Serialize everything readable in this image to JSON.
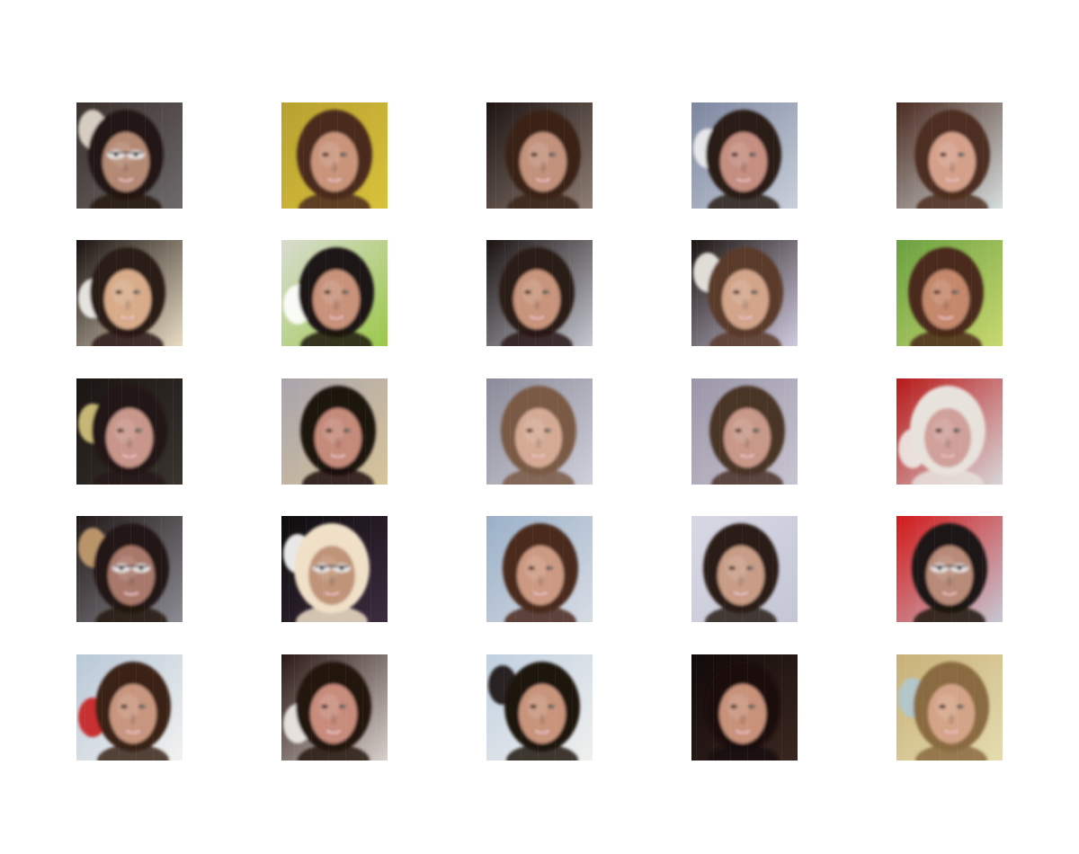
{
  "figure": {
    "background": "#ffffff",
    "rows": 5,
    "columns": 5,
    "tiles": [
      {
        "subject": "face-with-glasses",
        "bg": "#3a302c",
        "bg2": "#6e6a6c",
        "hair": "#241812",
        "skin": "#b58a74",
        "glasses": true,
        "blobs": [
          "#e7ddd0"
        ]
      },
      {
        "subject": "smiling-face",
        "bg": "#b8a030",
        "bg2": "#d8c23a",
        "hair": "#4a2a1c",
        "skin": "#c9947a",
        "glasses": false,
        "blobs": []
      },
      {
        "subject": "smiling-face",
        "bg": "#1d1412",
        "bg2": "#8e7e74",
        "hair": "#3b2318",
        "skin": "#c2927c",
        "glasses": false,
        "blobs": []
      },
      {
        "subject": "smiling-face",
        "bg": "#7c86a0",
        "bg2": "#c9d0da",
        "hair": "#2a1d18",
        "skin": "#c48e80",
        "glasses": false,
        "blobs": [
          "#f0f0ee"
        ]
      },
      {
        "subject": "smiling-face",
        "bg": "#4a2a20",
        "bg2": "#d6dede",
        "hair": "#4e2e20",
        "skin": "#d4a08a",
        "glasses": false,
        "blobs": []
      },
      {
        "subject": "smiling-face",
        "bg": "#1a1210",
        "bg2": "#e8dcc4",
        "hair": "#2b1a14",
        "skin": "#d8ac8a",
        "glasses": false,
        "blobs": [
          "#f4f2ee"
        ]
      },
      {
        "subject": "smiling-face",
        "bg": "#d8dcd0",
        "bg2": "#9cc84a",
        "hair": "#1c1412",
        "skin": "#c8927a",
        "glasses": false,
        "blobs": [
          "#ffffff"
        ]
      },
      {
        "subject": "smiling-face",
        "bg": "#1a1210",
        "bg2": "#c6c8d2",
        "hair": "#2a1a14",
        "skin": "#c8947c",
        "glasses": false,
        "blobs": []
      },
      {
        "subject": "smiling-face",
        "bg": "#1c1410",
        "bg2": "#cfcae0",
        "hair": "#5a3a2a",
        "skin": "#d2a48a",
        "glasses": false,
        "blobs": [
          "#f2eee8"
        ]
      },
      {
        "subject": "smiling-face",
        "bg": "#6aa040",
        "bg2": "#c8d870",
        "hair": "#4a2a1a",
        "skin": "#c4886c",
        "glasses": false,
        "blobs": []
      },
      {
        "subject": "smiling-face",
        "bg": "#1a1412",
        "bg2": "#3a3430",
        "hair": "#241814",
        "skin": "#c8968a",
        "glasses": false,
        "blobs": [
          "#d8c880"
        ]
      },
      {
        "subject": "smiling-face",
        "bg": "#a8a4ac",
        "bg2": "#d8c49a",
        "hair": "#1c1210",
        "skin": "#c48a7a",
        "glasses": false,
        "blobs": []
      },
      {
        "subject": "smiling-face",
        "bg": "#8a8a98",
        "bg2": "#d0d0dc",
        "hair": "#7a5a44",
        "skin": "#d4aa94",
        "glasses": false,
        "blobs": []
      },
      {
        "subject": "smiling-face",
        "bg": "#9a96a8",
        "bg2": "#c8c4d0",
        "hair": "#4a3428",
        "skin": "#c89888",
        "glasses": false,
        "blobs": []
      },
      {
        "subject": "smiling-face",
        "bg": "#b81818",
        "bg2": "#d8d6d8",
        "hair": "#e8e2dc",
        "skin": "#d0a09a",
        "glasses": false,
        "blobs": [
          "#f0ece8"
        ]
      },
      {
        "subject": "face-with-glasses",
        "bg": "#201816",
        "bg2": "#8c8c94",
        "hair": "#241812",
        "skin": "#a8786a",
        "glasses": true,
        "blobs": [
          "#c8a070"
        ]
      },
      {
        "subject": "face-with-glasses",
        "bg": "#0e0c0c",
        "bg2": "#3c2c40",
        "hair": "#f0e0c8",
        "skin": "#c09478",
        "glasses": true,
        "blobs": [
          "#ffffff"
        ]
      },
      {
        "subject": "smiling-face",
        "bg": "#9ab0c8",
        "bg2": "#d8dce4",
        "hair": "#4a2c1e",
        "skin": "#cc9a82",
        "glasses": false,
        "blobs": []
      },
      {
        "subject": "smiling-face",
        "bg": "#d8d8e4",
        "bg2": "#c4c6d6",
        "hair": "#2a1c16",
        "skin": "#c89c86",
        "glasses": false,
        "blobs": []
      },
      {
        "subject": "face-with-glasses",
        "bg": "#d21818",
        "bg2": "#c6c8d4",
        "hair": "#1c1412",
        "skin": "#b88a78",
        "glasses": true,
        "blobs": []
      },
      {
        "subject": "smiling-face",
        "bg": "#b8c8d8",
        "bg2": "#f2f2f0",
        "hair": "#3a2418",
        "skin": "#c8967e",
        "glasses": false,
        "blobs": [
          "#c82020"
        ]
      },
      {
        "subject": "smiling-face",
        "bg": "#2a1814",
        "bg2": "#d8d0cc",
        "hair": "#241410",
        "skin": "#c88c7c",
        "glasses": false,
        "blobs": [
          "#f2eeea"
        ]
      },
      {
        "subject": "smiling-face",
        "bg": "#c0d0e0",
        "bg2": "#f0f0ee",
        "hair": "#1e1410",
        "skin": "#c8947c",
        "glasses": false,
        "blobs": [
          "#1a1210"
        ]
      },
      {
        "subject": "smiling-face",
        "bg": "#100a08",
        "bg2": "#3a2620",
        "hair": "#1a100c",
        "skin": "#c8927a",
        "glasses": false,
        "blobs": []
      },
      {
        "subject": "smiling-face",
        "bg": "#c8b078",
        "bg2": "#e4dcb0",
        "hair": "#8a6a40",
        "skin": "#d4a488",
        "glasses": false,
        "blobs": [
          "#b0c8d0"
        ]
      }
    ]
  }
}
